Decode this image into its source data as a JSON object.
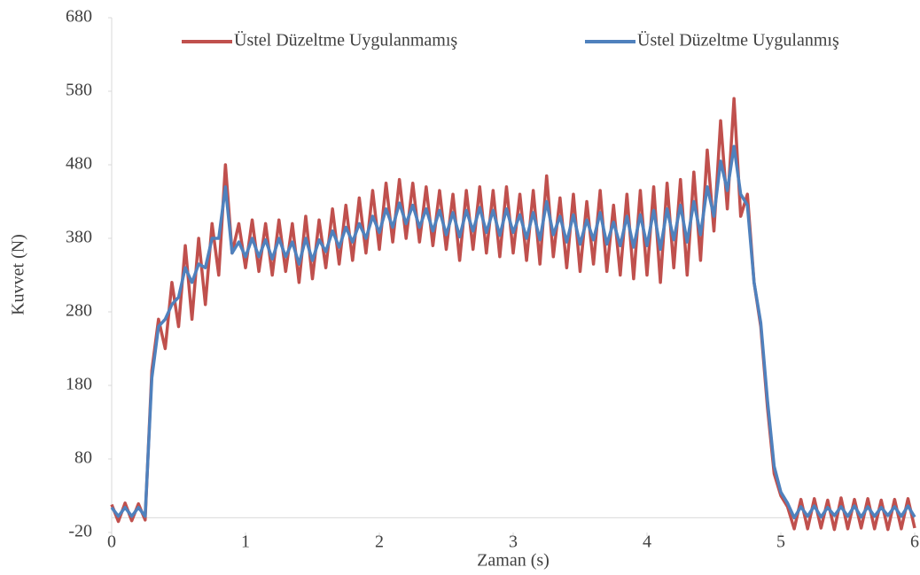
{
  "chart_data": {
    "type": "line",
    "xlabel": "Zaman (s)",
    "ylabel": "Kuvvet (N)",
    "legend": "top",
    "xlim": [
      0,
      6
    ],
    "xticks": [
      0,
      1,
      2,
      3,
      4,
      5,
      6
    ],
    "ylim": [
      -20,
      680
    ],
    "yticks": [
      -20,
      80,
      180,
      280,
      380,
      480,
      580,
      680
    ],
    "x": [
      0,
      0.05,
      0.1,
      0.15,
      0.2,
      0.25,
      0.3,
      0.35,
      0.4,
      0.45,
      0.5,
      0.55,
      0.6,
      0.65,
      0.7,
      0.75,
      0.8,
      0.85,
      0.9,
      0.95,
      1,
      1.05,
      1.1,
      1.15,
      1.2,
      1.25,
      1.3,
      1.35,
      1.4,
      1.45,
      1.5,
      1.55,
      1.6,
      1.65,
      1.7,
      1.75,
      1.8,
      1.85,
      1.9,
      1.95,
      2,
      2.05,
      2.1,
      2.15,
      2.2,
      2.25,
      2.3,
      2.35,
      2.4,
      2.45,
      2.5,
      2.55,
      2.6,
      2.65,
      2.7,
      2.75,
      2.8,
      2.85,
      2.9,
      2.95,
      3,
      3.05,
      3.1,
      3.15,
      3.2,
      3.25,
      3.3,
      3.35,
      3.4,
      3.45,
      3.5,
      3.55,
      3.6,
      3.65,
      3.7,
      3.75,
      3.8,
      3.85,
      3.9,
      3.95,
      4,
      4.05,
      4.1,
      4.15,
      4.2,
      4.25,
      4.3,
      4.35,
      4.4,
      4.45,
      4.5,
      4.55,
      4.6,
      4.65,
      4.7,
      4.75,
      4.8,
      4.85,
      4.9,
      4.95,
      5,
      5.05,
      5.1,
      5.15,
      5.2,
      5.25,
      5.3,
      5.35,
      5.4,
      5.45,
      5.5,
      5.55,
      5.6,
      5.65,
      5.7,
      5.75,
      5.8,
      5.85,
      5.9,
      5.95,
      6
    ],
    "series": [
      {
        "name": "Üstel Düzeltme Uygulanmamış",
        "color": "#c0504d",
        "values": [
          18,
          -5,
          20,
          -4,
          19,
          -3,
          200,
          270,
          230,
          320,
          260,
          370,
          270,
          380,
          290,
          400,
          330,
          480,
          360,
          400,
          340,
          405,
          335,
          400,
          330,
          405,
          335,
          400,
          320,
          410,
          325,
          405,
          340,
          420,
          345,
          425,
          350,
          435,
          360,
          445,
          365,
          455,
          375,
          460,
          380,
          455,
          375,
          450,
          370,
          445,
          365,
          440,
          350,
          445,
          365,
          450,
          360,
          445,
          355,
          450,
          360,
          440,
          350,
          445,
          345,
          465,
          355,
          435,
          340,
          440,
          335,
          430,
          345,
          445,
          335,
          425,
          330,
          440,
          325,
          445,
          330,
          450,
          320,
          455,
          340,
          460,
          330,
          470,
          350,
          500,
          390,
          540,
          420,
          570,
          410,
          440,
          320,
          260,
          150,
          60,
          30,
          15,
          -15,
          25,
          -15,
          26,
          -14,
          24,
          -16,
          27,
          -15,
          25,
          -14,
          26,
          -15,
          24,
          -16,
          25,
          -15,
          26,
          -14
        ]
      },
      {
        "name": "Üstel Düzeltme Uygulanmış",
        "color": "#4f81bd",
        "values": [
          14,
          2,
          14,
          2,
          14,
          2,
          190,
          260,
          270,
          290,
          300,
          340,
          320,
          345,
          340,
          380,
          380,
          450,
          360,
          375,
          355,
          380,
          355,
          378,
          352,
          380,
          355,
          375,
          345,
          380,
          350,
          378,
          362,
          390,
          368,
          395,
          375,
          400,
          380,
          410,
          388,
          420,
          395,
          428,
          400,
          425,
          395,
          420,
          390,
          418,
          385,
          415,
          382,
          418,
          390,
          422,
          388,
          418,
          384,
          420,
          388,
          412,
          380,
          415,
          378,
          430,
          385,
          410,
          375,
          412,
          372,
          405,
          378,
          415,
          372,
          402,
          370,
          410,
          368,
          412,
          370,
          418,
          365,
          420,
          378,
          425,
          375,
          430,
          385,
          450,
          410,
          485,
          445,
          505,
          440,
          425,
          320,
          265,
          160,
          70,
          35,
          20,
          0,
          15,
          2,
          16,
          1,
          14,
          3,
          15,
          2,
          16,
          1,
          15,
          2,
          14,
          3,
          15,
          2,
          16,
          1
        ]
      }
    ]
  }
}
